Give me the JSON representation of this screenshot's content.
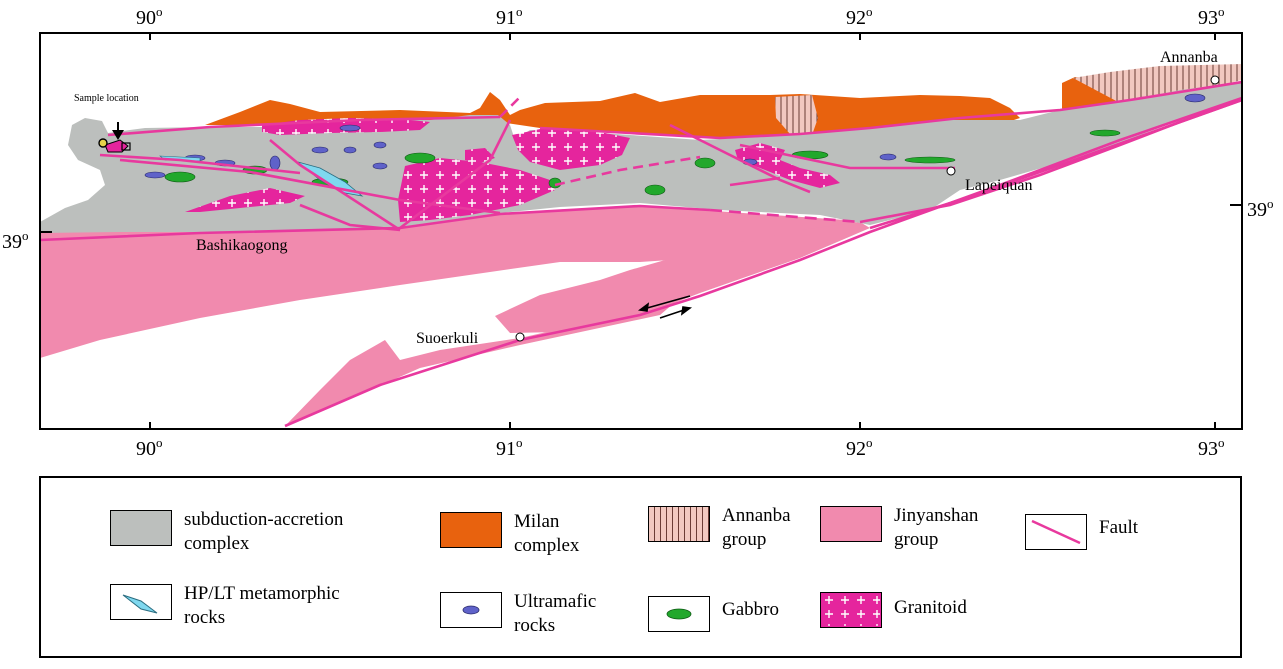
{
  "map": {
    "lon_ticks_top": [
      "90",
      "91",
      "92",
      "93"
    ],
    "lon_ticks_bottom": [
      "90",
      "91",
      "92",
      "93"
    ],
    "lat_tick_left": "39",
    "lat_tick_right": "39",
    "degree_symbol": "o",
    "places": {
      "annanba": "Annanba",
      "lapeiquan": "Lapeiquan",
      "bashikaogong": "Bashikaogong",
      "suoerkuli": "Suoerkuli",
      "sample": "Sample location"
    }
  },
  "legend": {
    "subduction": [
      "subduction-accretion",
      "complex"
    ],
    "milan": [
      "Milan",
      "complex"
    ],
    "annanba": [
      "Annanba",
      "group"
    ],
    "jinyanshan": [
      "Jinyanshan",
      "group"
    ],
    "fault": "Fault",
    "hplt": [
      "HP/LT metamorphic",
      "rocks"
    ],
    "ultramafic": [
      "Ultramafic",
      "rocks"
    ],
    "gabbro": "Gabbro",
    "granitoid": "Granitoid"
  },
  "colors": {
    "gray": "#bcbfbd",
    "orange": "#e8620e",
    "pink": "#f18aae",
    "magenta": "#e5259d",
    "fault": "#e8399e",
    "blue": "#5f62c9",
    "green": "#22a82c",
    "cyan": "#7fd8ef",
    "annanba_fill": "#f2c8c0"
  }
}
